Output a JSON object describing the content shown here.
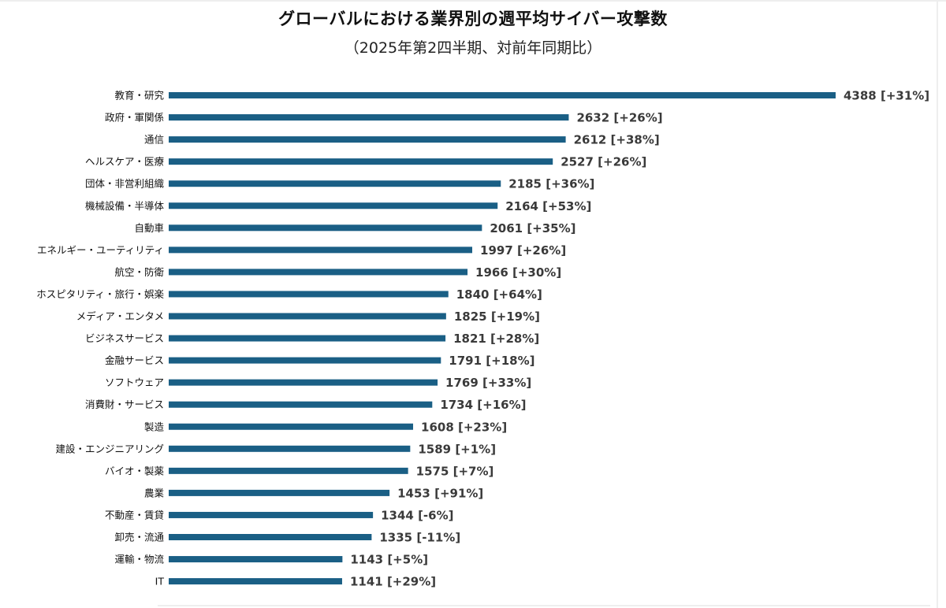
{
  "chart_data": {
    "type": "bar",
    "orientation": "horizontal",
    "title": "グローバルにおける業界別の週平均サイバー攻撃数",
    "subtitle": "（2025年第2四半期、対前年同期比）",
    "categories": [
      "教育・研究",
      "政府・軍関係",
      "通信",
      "ヘルスケア・医療",
      "団体・非営利組織",
      "機械設備・半導体",
      "自動車",
      "エネルギー・ユーティリティ",
      "航空・防衛",
      "ホスピタリティ・旅行・娯楽",
      "メディア・エンタメ",
      "ビジネスサービス",
      "金融サービス",
      "ソフトウェア",
      "消費財・サービス",
      "製造",
      "建設・エンジニアリング",
      "バイオ・製薬",
      "農業",
      "不動産・賃貸",
      "卸売・流通",
      "運輸・物流",
      "IT"
    ],
    "values": [
      4388,
      2632,
      2612,
      2527,
      2185,
      2164,
      2061,
      1997,
      1966,
      1840,
      1825,
      1821,
      1791,
      1769,
      1734,
      1608,
      1589,
      1575,
      1453,
      1344,
      1335,
      1143,
      1141
    ],
    "value_labels": [
      "4388 [+31%]",
      "2632 [+26%]",
      "2612 [+38%]",
      "2527 [+26%]",
      "2185 [+36%]",
      "2164 [+53%]",
      "2061 [+35%]",
      "1997 [+26%]",
      "1966 [+30%]",
      "1840 [+64%]",
      "1825 [+19%]",
      "1821 [+28%]",
      "1791 [+18%]",
      "1769 [+33%]",
      "1734 [+16%]",
      "1608 [+23%]",
      "1589 [+1%]",
      "1575 [+7%]",
      "1453 [+91%]",
      "1344 [-6%]",
      "1335 [-11%]",
      "1143 [+5%]",
      "1141 [+29%]"
    ],
    "xlim": [
      0,
      4388
    ],
    "grid": false,
    "bar_color": "#1a5f85"
  }
}
